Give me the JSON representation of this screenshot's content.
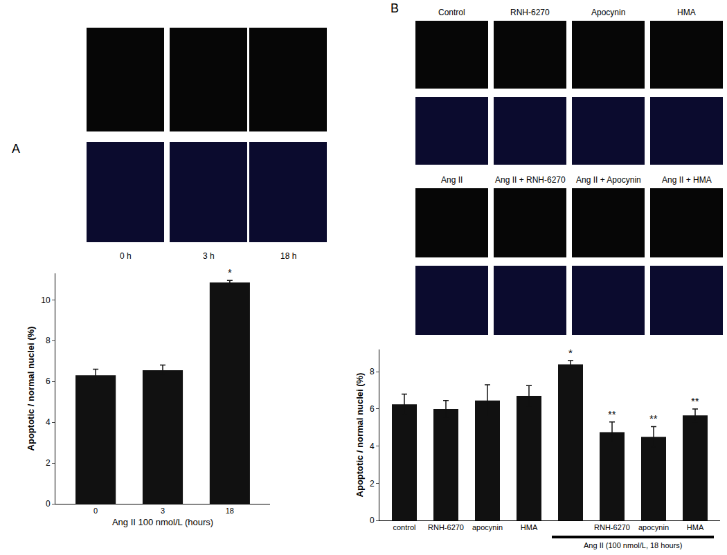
{
  "chart_data": [
    {
      "type": "bar",
      "panel": "A",
      "panel_labels": [
        [
          "0 h",
          "3 h",
          "18 h"
        ]
      ],
      "categories": [
        "0",
        "3",
        "18"
      ],
      "values": [
        6.3,
        6.55,
        10.85
      ],
      "errors": [
        0.3,
        0.25,
        0.1
      ],
      "significance": [
        null,
        null,
        "*"
      ],
      "x_label": "Ang II 100 nmol/L (hours)",
      "y_label": "Apoptotic / normal nuclei (%)",
      "ylim": [
        0,
        11.3
      ],
      "yticks": [
        0,
        2,
        4,
        6,
        8,
        10
      ],
      "color": "#111111",
      "grid": false
    },
    {
      "type": "bar",
      "panel": "B",
      "panel_labels": [
        [
          "Control",
          "RNH-6270",
          "Apocynin",
          "HMA"
        ],
        [
          "Ang II",
          "Ang II + RNH-6270",
          "Ang II + Apocynin",
          "Ang II + HMA"
        ]
      ],
      "categories": [
        "control",
        "RNH-6270",
        "apocynin",
        "HMA",
        null,
        "RNH-6270",
        "apocynin",
        "HMA"
      ],
      "values": [
        6.25,
        6.0,
        6.45,
        6.7,
        8.4,
        4.75,
        4.5,
        5.65
      ],
      "errors": [
        0.55,
        0.45,
        0.85,
        0.55,
        0.2,
        0.55,
        0.55,
        0.35
      ],
      "significance": [
        null,
        null,
        null,
        null,
        "*",
        "**",
        "**",
        "**"
      ],
      "bracket": {
        "label": "Ang II (100 nmol/L, 18 hours)",
        "first": 4,
        "last": 7
      },
      "y_label": "Apoptotic / normal nuclei (%)",
      "ylim": [
        0,
        9.2
      ],
      "yticks": [
        0,
        2,
        4,
        6,
        8
      ],
      "color": "#111111",
      "grid": false
    }
  ]
}
